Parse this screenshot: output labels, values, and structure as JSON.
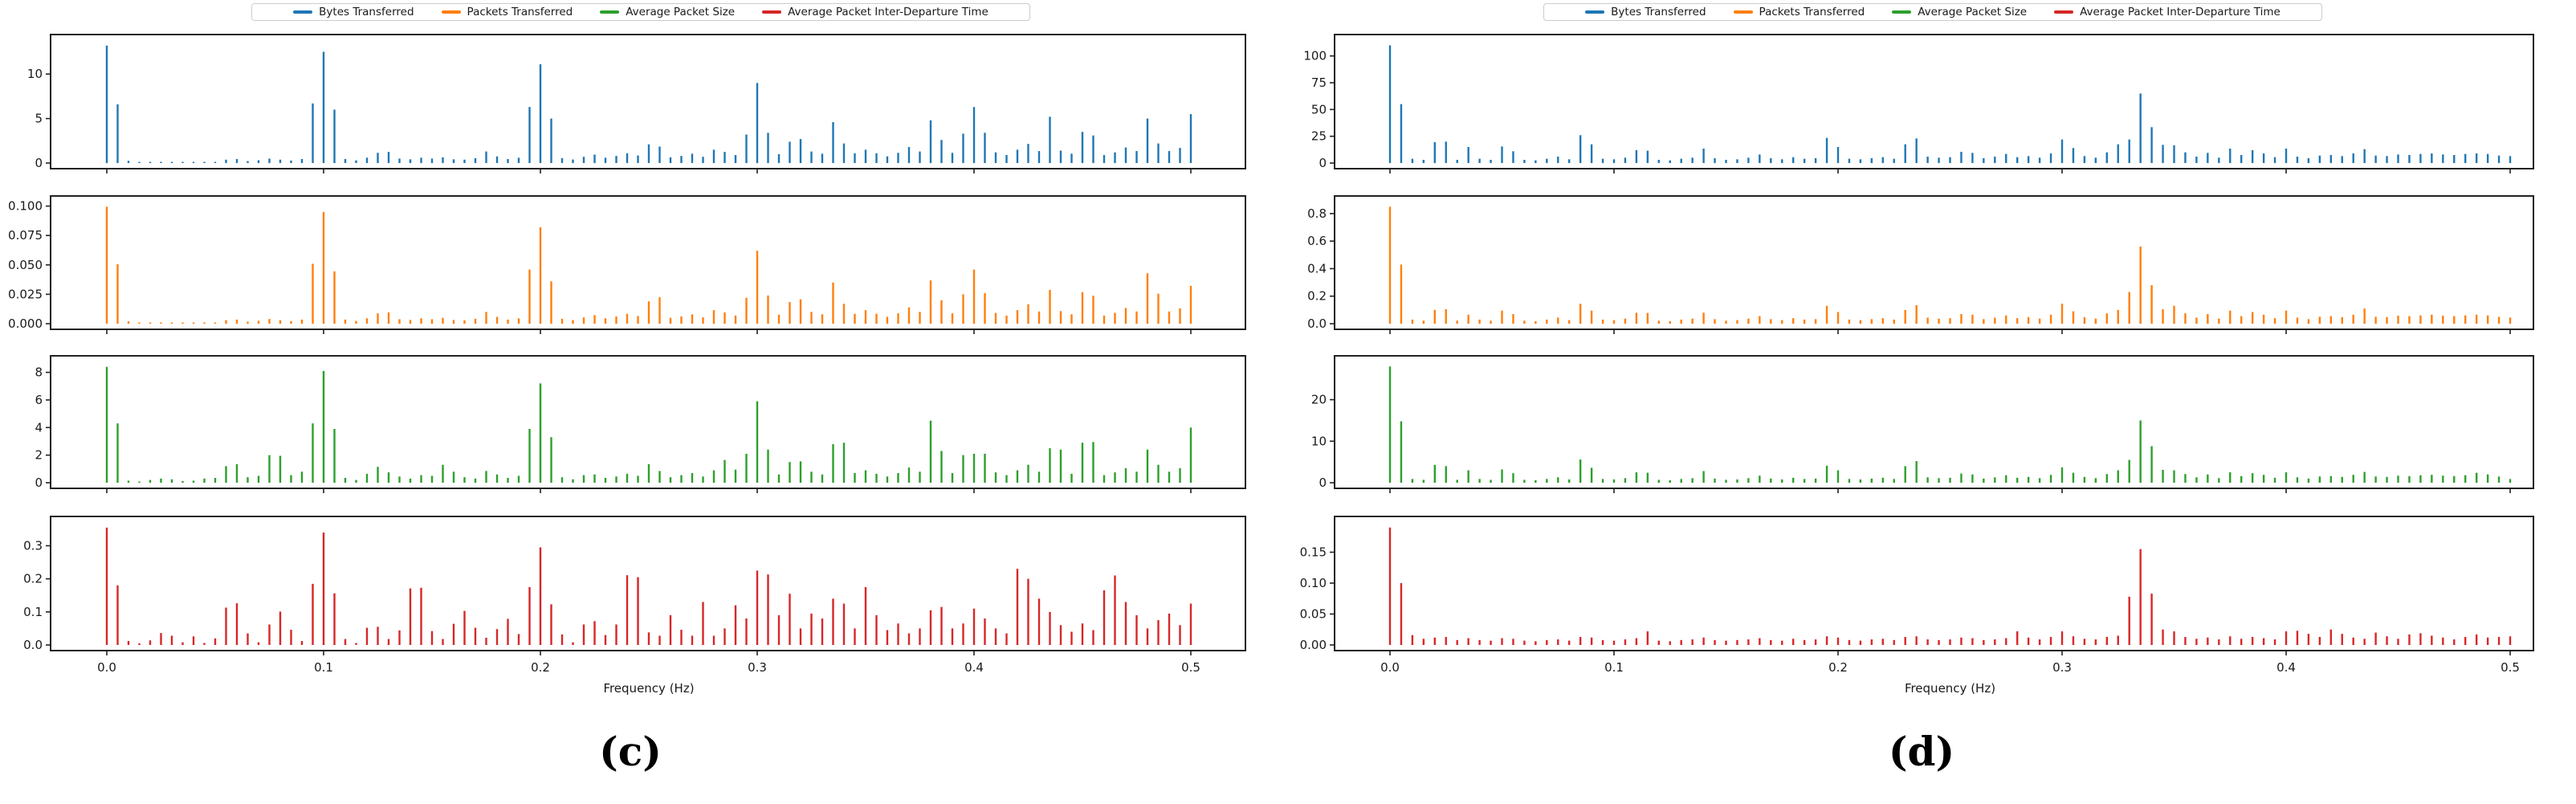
{
  "figure": {
    "background": "#ffffff",
    "captions": {
      "c": "(c)",
      "d": "(d)"
    }
  },
  "chart_data": [
    {
      "type": "stem",
      "panel": "c",
      "caption": "(c)",
      "xlabel": "Frequency (Hz)",
      "x_start": 0.0,
      "x_step": 0.005,
      "xlim": [
        -0.026,
        0.525
      ],
      "xticks": [
        0.0,
        0.1,
        0.2,
        0.3,
        0.4,
        0.5
      ],
      "xtick_labels": [
        "0.0",
        "0.1",
        "0.2",
        "0.3",
        "0.4",
        "0.5"
      ],
      "grid": false,
      "legend_position": "top-center",
      "series": [
        {
          "name": "Bytes Transferred",
          "color": "#1f77b4",
          "ymax": 13.9,
          "ytick_values": [
            0,
            5,
            10
          ],
          "ytick_labels": [
            "0",
            "5",
            "10"
          ],
          "values": [
            13.2,
            6.6,
            0.25,
            0.06,
            0.05,
            0.07,
            0.06,
            0.08,
            0.07,
            0.09,
            0.12,
            0.38,
            0.45,
            0.22,
            0.32,
            0.5,
            0.38,
            0.28,
            0.45,
            6.7,
            12.5,
            6.0,
            0.45,
            0.3,
            0.6,
            1.15,
            1.25,
            0.5,
            0.42,
            0.6,
            0.5,
            0.65,
            0.42,
            0.38,
            0.55,
            1.3,
            0.75,
            0.45,
            0.6,
            6.3,
            11.1,
            5.0,
            0.55,
            0.4,
            0.7,
            0.95,
            0.6,
            0.8,
            1.1,
            0.85,
            2.1,
            1.85,
            0.65,
            0.8,
            1.05,
            0.7,
            1.5,
            1.25,
            0.9,
            3.2,
            9.0,
            3.4,
            1.0,
            2.4,
            2.7,
            1.3,
            1.05,
            4.6,
            2.2,
            1.1,
            1.5,
            1.1,
            0.75,
            1.15,
            1.8,
            1.3,
            4.8,
            2.6,
            1.15,
            3.3,
            6.3,
            3.4,
            1.2,
            0.9,
            1.5,
            2.15,
            1.35,
            5.2,
            1.4,
            1.05,
            3.5,
            3.1,
            0.9,
            1.2,
            1.75,
            1.35,
            5.0,
            2.2,
            1.35,
            1.7,
            5.5
          ]
        },
        {
          "name": "Packets Transferred",
          "color": "#ff7f0e",
          "ymax": 0.1045,
          "ytick_values": [
            0,
            0.025,
            0.05,
            0.075,
            0.1
          ],
          "ytick_labels": [
            "0.000",
            "0.025",
            "0.050",
            "0.075",
            "0.100"
          ],
          "values": [
            0.0995,
            0.0505,
            0.002,
            0.0005,
            0.0004,
            0.0005,
            0.0005,
            0.0006,
            0.0005,
            0.0007,
            0.001,
            0.003,
            0.0035,
            0.0017,
            0.0025,
            0.004,
            0.003,
            0.0022,
            0.0035,
            0.051,
            0.095,
            0.0445,
            0.0035,
            0.0023,
            0.0046,
            0.0088,
            0.0096,
            0.0038,
            0.0032,
            0.0046,
            0.0038,
            0.005,
            0.0032,
            0.0029,
            0.0042,
            0.01,
            0.0058,
            0.0035,
            0.0046,
            0.046,
            0.082,
            0.036,
            0.0042,
            0.0031,
            0.0054,
            0.0073,
            0.0046,
            0.0061,
            0.0084,
            0.0065,
            0.019,
            0.0225,
            0.005,
            0.0061,
            0.008,
            0.0054,
            0.0115,
            0.0096,
            0.0069,
            0.022,
            0.062,
            0.024,
            0.0077,
            0.0184,
            0.0207,
            0.01,
            0.008,
            0.035,
            0.0169,
            0.0084,
            0.0115,
            0.0084,
            0.0058,
            0.0088,
            0.0138,
            0.01,
            0.0368,
            0.0199,
            0.0088,
            0.025,
            0.046,
            0.026,
            0.0092,
            0.0069,
            0.0115,
            0.0165,
            0.0104,
            0.0288,
            0.0107,
            0.008,
            0.0268,
            0.0238,
            0.0069,
            0.0092,
            0.0134,
            0.0104,
            0.0429,
            0.0255,
            0.0104,
            0.013,
            0.0322
          ]
        },
        {
          "name": "Average Packet Size",
          "color": "#2ca02c",
          "ymax": 8.85,
          "ytick_values": [
            0,
            2,
            4,
            6,
            8
          ],
          "ytick_labels": [
            "0",
            "2",
            "4",
            "6",
            "8"
          ],
          "values": [
            8.4,
            4.3,
            0.15,
            0.05,
            0.2,
            0.3,
            0.25,
            0.12,
            0.15,
            0.3,
            0.35,
            1.2,
            1.35,
            0.4,
            0.5,
            2.0,
            1.95,
            0.55,
            0.8,
            4.3,
            8.1,
            3.9,
            0.35,
            0.2,
            0.65,
            1.15,
            0.75,
            0.45,
            0.3,
            0.55,
            0.5,
            1.3,
            0.8,
            0.4,
            0.3,
            0.85,
            0.6,
            0.35,
            0.5,
            3.9,
            7.2,
            3.3,
            0.4,
            0.25,
            0.55,
            0.6,
            0.35,
            0.45,
            0.65,
            0.5,
            1.35,
            0.85,
            0.4,
            0.55,
            0.7,
            0.45,
            0.9,
            1.65,
            0.95,
            2.1,
            5.9,
            2.4,
            0.6,
            1.5,
            1.55,
            0.8,
            0.6,
            2.8,
            2.9,
            0.7,
            0.9,
            0.65,
            0.45,
            0.7,
            1.1,
            0.8,
            4.5,
            2.3,
            0.7,
            2.0,
            2.1,
            2.1,
            0.75,
            0.55,
            0.9,
            1.3,
            0.8,
            2.5,
            2.4,
            0.65,
            2.9,
            2.95,
            0.55,
            0.75,
            1.05,
            0.8,
            2.4,
            1.3,
            0.8,
            1.05,
            4.0
          ]
        },
        {
          "name": "Average Packet Inter-Departure Time",
          "color": "#d62728",
          "ymax": 0.374,
          "ytick_values": [
            0,
            0.1,
            0.2,
            0.3
          ],
          "ytick_labels": [
            "0.0",
            "0.1",
            "0.2",
            "0.3"
          ],
          "values": [
            0.355,
            0.18,
            0.012,
            0.005,
            0.014,
            0.036,
            0.028,
            0.008,
            0.026,
            0.006,
            0.02,
            0.113,
            0.126,
            0.035,
            0.008,
            0.062,
            0.101,
            0.046,
            0.012,
            0.185,
            0.34,
            0.156,
            0.018,
            0.006,
            0.052,
            0.055,
            0.018,
            0.044,
            0.171,
            0.173,
            0.042,
            0.018,
            0.064,
            0.103,
            0.052,
            0.022,
            0.048,
            0.079,
            0.033,
            0.175,
            0.295,
            0.123,
            0.032,
            0.008,
            0.062,
            0.072,
            0.03,
            0.062,
            0.211,
            0.205,
            0.038,
            0.028,
            0.09,
            0.046,
            0.028,
            0.13,
            0.028,
            0.05,
            0.12,
            0.08,
            0.225,
            0.213,
            0.09,
            0.155,
            0.05,
            0.095,
            0.08,
            0.14,
            0.125,
            0.05,
            0.175,
            0.09,
            0.045,
            0.065,
            0.035,
            0.05,
            0.105,
            0.115,
            0.05,
            0.065,
            0.11,
            0.08,
            0.05,
            0.035,
            0.23,
            0.2,
            0.14,
            0.1,
            0.06,
            0.04,
            0.065,
            0.045,
            0.165,
            0.21,
            0.13,
            0.09,
            0.05,
            0.075,
            0.095,
            0.06,
            0.125
          ]
        }
      ]
    },
    {
      "type": "stem",
      "panel": "d",
      "caption": "(d)",
      "xlabel": "Frequency (Hz)",
      "x_start": 0.0,
      "x_step": 0.005,
      "xlim": [
        -0.026,
        0.525
      ],
      "xticks": [
        0.0,
        0.1,
        0.2,
        0.3,
        0.4,
        0.5
      ],
      "xtick_labels": [
        "0.0",
        "0.1",
        "0.2",
        "0.3",
        "0.4",
        "0.5"
      ],
      "grid": false,
      "legend_position": "top-center",
      "series": [
        {
          "name": "Bytes Transferred",
          "color": "#1f77b4",
          "ymax": 115.5,
          "ytick_values": [
            0,
            25,
            50,
            75,
            100
          ],
          "ytick_labels": [
            "0",
            "25",
            "50",
            "75",
            "100"
          ],
          "values": [
            110,
            55,
            4,
            3,
            19.5,
            20,
            3,
            15,
            4,
            3,
            15.5,
            11,
            3,
            2.5,
            4,
            6,
            3.5,
            26,
            17.5,
            4,
            3.5,
            5,
            12,
            11.5,
            3,
            2.5,
            4,
            5,
            13.5,
            4.5,
            3,
            3.5,
            5,
            8,
            4.5,
            3.5,
            5.5,
            4,
            4.5,
            23.5,
            15,
            4,
            3.5,
            4.5,
            5.5,
            4,
            17.5,
            23,
            6,
            5,
            5.5,
            10.5,
            9.5,
            4.5,
            6,
            8.5,
            5.5,
            6.5,
            5,
            9,
            22,
            14,
            6.5,
            5,
            10,
            17.5,
            22,
            65,
            33.5,
            17,
            16.5,
            10,
            6,
            9.5,
            5,
            13.5,
            7.5,
            12,
            9,
            5.5,
            13.5,
            6,
            4.5,
            7,
            7.5,
            6.5,
            9,
            13,
            7,
            6.5,
            8,
            7.5,
            8.5,
            9,
            8,
            7.5,
            8.5,
            9,
            8.5,
            7,
            6.5
          ]
        },
        {
          "name": "Packets Transferred",
          "color": "#ff7f0e",
          "ymax": 0.893,
          "ytick_values": [
            0,
            0.2,
            0.4,
            0.6,
            0.8
          ],
          "ytick_labels": [
            "0.0",
            "0.2",
            "0.4",
            "0.6",
            "0.8"
          ],
          "values": [
            0.85,
            0.43,
            0.03,
            0.022,
            0.1,
            0.105,
            0.022,
            0.065,
            0.03,
            0.022,
            0.095,
            0.07,
            0.022,
            0.018,
            0.03,
            0.045,
            0.026,
            0.145,
            0.095,
            0.03,
            0.026,
            0.037,
            0.08,
            0.078,
            0.022,
            0.018,
            0.03,
            0.037,
            0.08,
            0.033,
            0.022,
            0.026,
            0.037,
            0.055,
            0.033,
            0.026,
            0.04,
            0.03,
            0.033,
            0.13,
            0.085,
            0.03,
            0.026,
            0.033,
            0.04,
            0.03,
            0.1,
            0.135,
            0.044,
            0.037,
            0.04,
            0.07,
            0.065,
            0.033,
            0.044,
            0.06,
            0.04,
            0.048,
            0.037,
            0.065,
            0.145,
            0.09,
            0.048,
            0.037,
            0.075,
            0.1,
            0.23,
            0.56,
            0.28,
            0.105,
            0.13,
            0.075,
            0.044,
            0.07,
            0.037,
            0.095,
            0.055,
            0.085,
            0.065,
            0.04,
            0.095,
            0.044,
            0.033,
            0.05,
            0.055,
            0.048,
            0.065,
            0.11,
            0.05,
            0.048,
            0.058,
            0.055,
            0.06,
            0.065,
            0.058,
            0.055,
            0.06,
            0.065,
            0.06,
            0.05,
            0.045
          ]
        },
        {
          "name": "Average Packet Size",
          "color": "#2ca02c",
          "ymax": 29.4,
          "ytick_values": [
            0,
            10,
            20
          ],
          "ytick_labels": [
            "0",
            "10",
            "20"
          ],
          "values": [
            28,
            14.8,
            0.9,
            0.7,
            4.3,
            4.0,
            0.7,
            3.0,
            0.9,
            0.7,
            3.2,
            2.3,
            0.7,
            0.6,
            0.9,
            1.3,
            0.8,
            5.6,
            3.6,
            0.9,
            0.8,
            1.1,
            2.5,
            2.4,
            0.7,
            0.6,
            0.9,
            1.1,
            2.8,
            1.0,
            0.7,
            0.8,
            1.1,
            1.7,
            1.0,
            0.8,
            1.2,
            0.9,
            1.0,
            4.1,
            3.0,
            0.9,
            0.8,
            1.0,
            1.2,
            0.9,
            4.0,
            5.2,
            1.3,
            1.1,
            1.2,
            2.2,
            2.0,
            1.0,
            1.3,
            1.8,
            1.2,
            1.4,
            1.1,
            1.9,
            3.7,
            2.4,
            1.4,
            1.1,
            2.1,
            3.0,
            5.5,
            15.0,
            8.8,
            3.1,
            3.0,
            2.1,
            1.3,
            2.0,
            1.1,
            2.5,
            1.6,
            2.3,
            1.9,
            1.2,
            2.5,
            1.3,
            1.0,
            1.5,
            1.6,
            1.4,
            1.9,
            2.6,
            1.5,
            1.4,
            1.7,
            1.6,
            1.8,
            1.9,
            1.7,
            1.6,
            1.8,
            2.4,
            2.0,
            1.5,
            0.9
          ]
        },
        {
          "name": "Average Packet Inter-Departure Time",
          "color": "#d62728",
          "ymax": 0.2,
          "ytick_values": [
            0,
            0.05,
            0.1,
            0.15
          ],
          "ytick_labels": [
            "0.00",
            "0.05",
            "0.10",
            "0.15"
          ],
          "values": [
            0.19,
            0.1,
            0.016,
            0.01,
            0.012,
            0.013,
            0.008,
            0.011,
            0.008,
            0.007,
            0.011,
            0.01,
            0.007,
            0.006,
            0.008,
            0.009,
            0.007,
            0.013,
            0.012,
            0.008,
            0.007,
            0.009,
            0.011,
            0.022,
            0.007,
            0.006,
            0.008,
            0.009,
            0.012,
            0.008,
            0.007,
            0.008,
            0.009,
            0.011,
            0.008,
            0.007,
            0.01,
            0.008,
            0.009,
            0.014,
            0.012,
            0.008,
            0.007,
            0.009,
            0.01,
            0.008,
            0.013,
            0.014,
            0.009,
            0.008,
            0.009,
            0.012,
            0.011,
            0.008,
            0.009,
            0.011,
            0.022,
            0.012,
            0.009,
            0.013,
            0.022,
            0.014,
            0.01,
            0.009,
            0.013,
            0.015,
            0.078,
            0.155,
            0.083,
            0.025,
            0.022,
            0.013,
            0.01,
            0.012,
            0.009,
            0.014,
            0.01,
            0.013,
            0.011,
            0.009,
            0.022,
            0.023,
            0.018,
            0.013,
            0.025,
            0.018,
            0.012,
            0.01,
            0.02,
            0.014,
            0.01,
            0.017,
            0.019,
            0.015,
            0.012,
            0.009,
            0.013,
            0.017,
            0.012,
            0.013,
            0.014
          ]
        }
      ]
    }
  ]
}
